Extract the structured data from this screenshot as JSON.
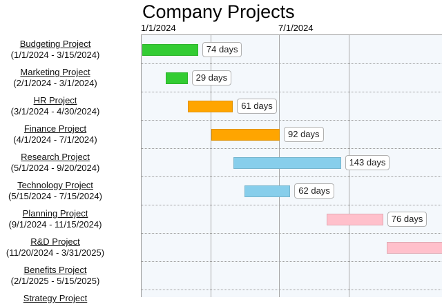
{
  "title": "Company Projects",
  "axis": {
    "ticks": [
      "1/1/2024",
      "7/1/2024"
    ]
  },
  "colors": {
    "green": "#33cc33",
    "orange": "#ffa500",
    "skyblue": "#87ceeb",
    "pink": "#ffc0cb"
  },
  "tasks": [
    {
      "name": "Budgeting Project",
      "dates": "(1/1/2024 - 3/15/2024)",
      "start": "2024-01-01",
      "end": "2024-03-15",
      "duration": "74 days",
      "color": "green"
    },
    {
      "name": "Marketing Project",
      "dates": "(2/1/2024 - 3/1/2024)",
      "start": "2024-02-01",
      "end": "2024-03-01",
      "duration": "29 days",
      "color": "green"
    },
    {
      "name": "HR Project",
      "dates": "(3/1/2024 - 4/30/2024)",
      "start": "2024-03-01",
      "end": "2024-04-30",
      "duration": "61 days",
      "color": "orange"
    },
    {
      "name": "Finance Project",
      "dates": "(4/1/2024 - 7/1/2024)",
      "start": "2024-04-01",
      "end": "2024-07-01",
      "duration": "92 days",
      "color": "orange"
    },
    {
      "name": "Research Project",
      "dates": "(5/1/2024 - 9/20/2024)",
      "start": "2024-05-01",
      "end": "2024-09-20",
      "duration": "143 days",
      "color": "skyblue"
    },
    {
      "name": "Technology Project",
      "dates": "(5/15/2024 - 7/15/2024)",
      "start": "2024-05-15",
      "end": "2024-07-15",
      "duration": "62 days",
      "color": "skyblue"
    },
    {
      "name": "Planning Project",
      "dates": "(9/1/2024 - 11/15/2024)",
      "start": "2024-09-01",
      "end": "2024-11-15",
      "duration": "76 days",
      "color": "pink"
    },
    {
      "name": "R&D Project",
      "dates": "(11/20/2024 - 3/31/2025)",
      "start": "2024-11-20",
      "end": "2025-03-31",
      "duration": "",
      "color": "pink"
    },
    {
      "name": "Benefits Project",
      "dates": "(2/1/2025 - 5/15/2025)",
      "start": "2025-02-01",
      "end": "2025-05-15",
      "duration": "",
      "color": ""
    },
    {
      "name": "Strategy Project",
      "dates": "",
      "start": "",
      "end": "",
      "duration": "",
      "color": ""
    }
  ]
}
